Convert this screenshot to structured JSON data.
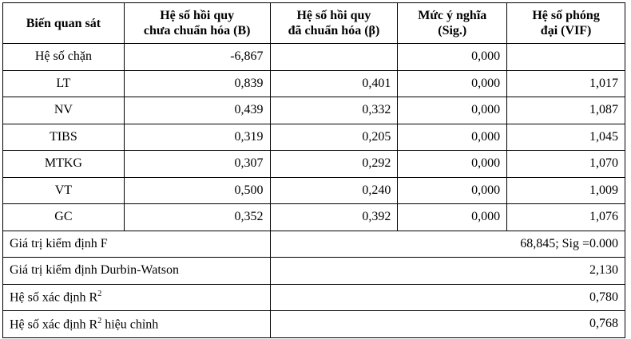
{
  "table": {
    "header": [
      [
        "Biến quan sát"
      ],
      [
        "Hệ số hồi quy",
        "chưa chuẩn hóa (B)"
      ],
      [
        "Hệ số hồi quy",
        "đã chuẩn hóa (β)"
      ],
      [
        "Mức ý nghĩa",
        "(Sig.)"
      ],
      [
        "Hệ số phóng",
        "đại (VIF)"
      ]
    ],
    "rows": [
      [
        "Hệ số chặn",
        "-6,867",
        null,
        "0,000",
        null
      ],
      [
        "LT",
        "0,839",
        "0,401",
        "0,000",
        "1,017"
      ],
      [
        "NV",
        "0,439",
        "0,332",
        "0,000",
        "1,087"
      ],
      [
        "TIBS",
        "0,319",
        "0,205",
        "0,000",
        "1,045"
      ],
      [
        "MTKG",
        "0,307",
        "0,292",
        "0,000",
        "1,070"
      ],
      [
        "VT",
        "0,500",
        "0,240",
        "0,000",
        "1,009"
      ],
      [
        "GC",
        "0,352",
        "0,392",
        "0,000",
        "1,076"
      ]
    ],
    "summary": [
      {
        "label": "Giá trị kiểm định F",
        "value": "68,845; Sig =0.000"
      },
      {
        "label": "Giá trị kiểm định Durbin-Watson",
        "value": "2,130"
      },
      {
        "label": "Hệ số xác định R",
        "sup": "2",
        "value": "0,780"
      },
      {
        "label": "Hệ số xác định R",
        "sup": "2",
        "suffix": " hiệu chỉnh",
        "value": "0,768"
      }
    ]
  }
}
